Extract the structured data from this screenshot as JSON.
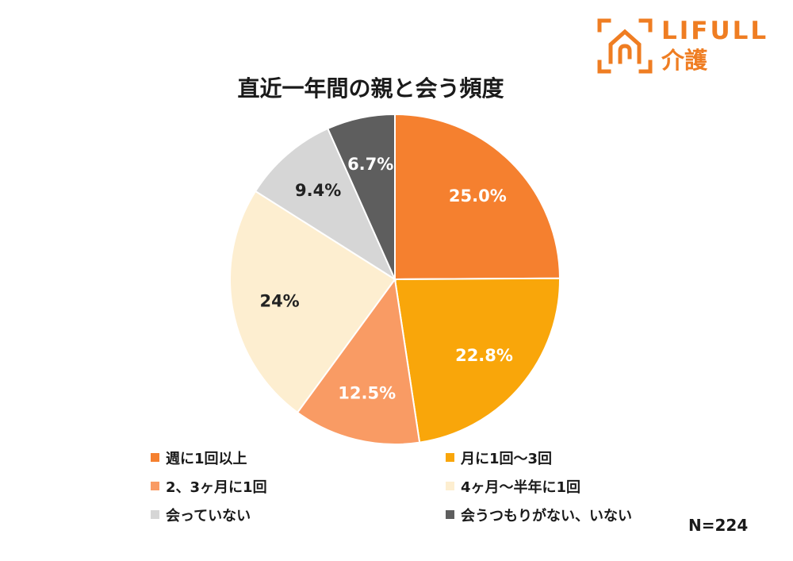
{
  "logo": {
    "brand": "LIFULL",
    "service": "介護",
    "color": "#ef7d22"
  },
  "chart_data": {
    "type": "pie",
    "title": "直近一年間の親と会う頻度",
    "sample_size": "N=224",
    "legend_placement": "bottom",
    "slices": [
      {
        "label": "週に1回以上",
        "value": 25.0,
        "display": "25.0%",
        "color": "#f5802f",
        "label_color": "#ffffff"
      },
      {
        "label": "月に1回〜3回",
        "value": 22.8,
        "display": "22.8%",
        "color": "#f9a60a",
        "label_color": "#ffffff"
      },
      {
        "label": "2、3ヶ月に1回",
        "value": 12.5,
        "display": "12.5%",
        "color": "#f99b64",
        "label_color": "#ffffff"
      },
      {
        "label": "4ヶ月〜半年に1回",
        "value": 24,
        "display": "24%",
        "color": "#fdeed0",
        "label_color": "#222222"
      },
      {
        "label": "会っていない",
        "value": 9.4,
        "display": "9.4%",
        "color": "#d6d6d6",
        "label_color": "#222222"
      },
      {
        "label": "会うつもりがない、いない",
        "value": 6.7,
        "display": "6.7%",
        "color": "#5e5e5e",
        "label_color": "#ffffff"
      }
    ]
  }
}
